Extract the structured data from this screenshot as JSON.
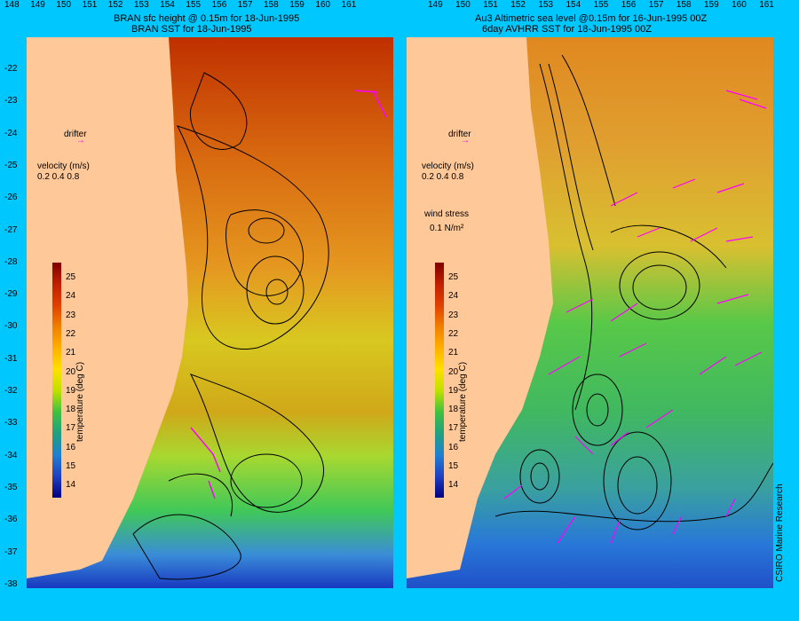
{
  "left_panel": {
    "title_line1": "BRAN sfc height @ 0.15m  for 18-Jun-1995",
    "title_line2": "BRAN SST for 18-Jun-1995",
    "drifter_label": "drifter",
    "velocity_title": "velocity (m/s)",
    "velocity_scale": "0.2 0.4 0.8",
    "colorbar_label": "temperature (deg C)"
  },
  "right_panel": {
    "title_line1": "Au3 Altimetric sea level  @0.15m  for 16-Jun-1995 00Z",
    "title_line2": "6day AVHRR SST for 18-Jun-1995 00Z",
    "drifter_label": "drifter",
    "velocity_title": "velocity (m/s)",
    "velocity_scale": "0.2 0.4 0.8",
    "wind_title": "wind stress",
    "wind_value": "0.1 N/m²",
    "colorbar_label": "temperature (deg C)",
    "credit": "CSIRO Marine Research"
  },
  "colorbar_ticks": [
    "25",
    "24",
    "23",
    "22",
    "21",
    "20",
    "19",
    "18",
    "17",
    "16",
    "15",
    "14"
  ],
  "latitude_ticks": [
    "-22",
    "-23",
    "-24",
    "-25",
    "-26",
    "-27",
    "-28",
    "-29",
    "-30",
    "-31",
    "-32",
    "-33",
    "-34",
    "-35",
    "-36",
    "-37",
    "-38"
  ],
  "left_longitude_ticks": [
    "148",
    "149",
    "150",
    "151",
    "152",
    "153",
    "154",
    "155",
    "156",
    "157",
    "158",
    "159",
    "160",
    "161"
  ],
  "right_longitude_ticks": [
    "149",
    "150",
    "151",
    "152",
    "153",
    "154",
    "155",
    "156",
    "157",
    "158",
    "159",
    "160",
    "161"
  ],
  "colors": {
    "background": "#00c8ff",
    "land": "#ffc898",
    "vector": "#ff00ff"
  }
}
